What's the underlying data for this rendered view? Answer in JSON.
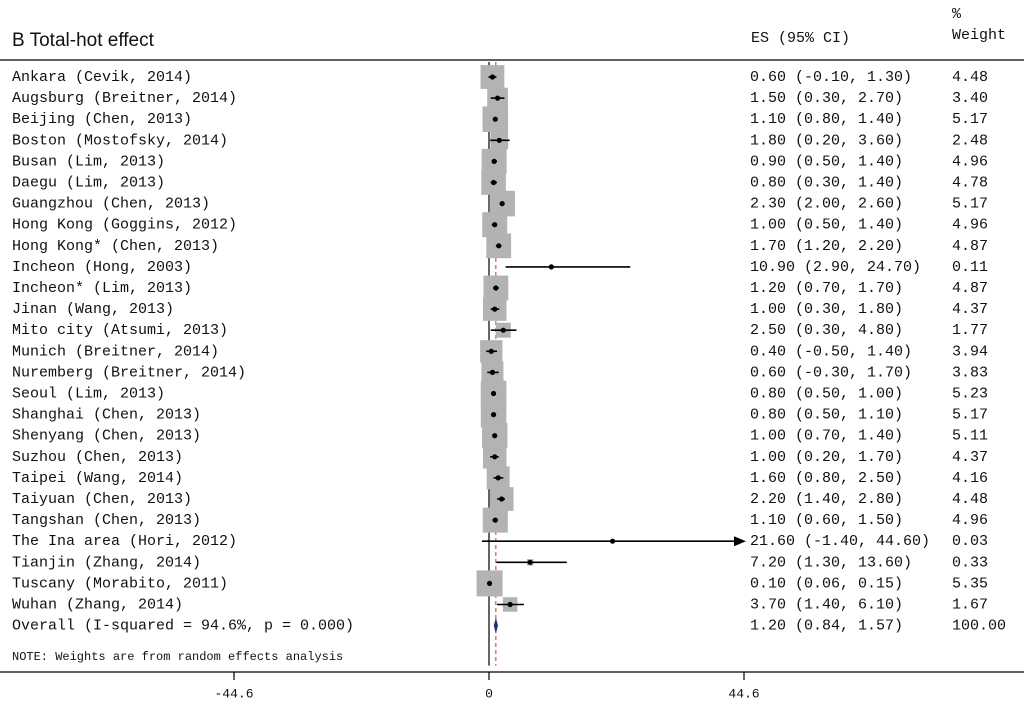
{
  "chart_data": {
    "type": "forest",
    "title": "B Total-hot effect",
    "headers": {
      "es": "ES (95% CI)",
      "weight_pct": "%",
      "weight": "Weight"
    },
    "studies": [
      {
        "label": "Ankara (Cevik, 2014)",
        "es": 0.6,
        "lo": -0.1,
        "hi": 1.3,
        "ci_text": "0.60 (-0.10, 1.30)",
        "weight": 4.48,
        "weight_text": "4.48"
      },
      {
        "label": "Augsburg  (Breitner, 2014)",
        "es": 1.5,
        "lo": 0.3,
        "hi": 2.7,
        "ci_text": "1.50 (0.30, 2.70)",
        "weight": 3.4,
        "weight_text": "3.40"
      },
      {
        "label": "Beijing (Chen, 2013)",
        "es": 1.1,
        "lo": 0.8,
        "hi": 1.4,
        "ci_text": "1.10 (0.80, 1.40)",
        "weight": 5.17,
        "weight_text": "5.17"
      },
      {
        "label": "Boston (Mostofsky, 2014)",
        "es": 1.8,
        "lo": 0.2,
        "hi": 3.6,
        "ci_text": "1.80 (0.20, 3.60)",
        "weight": 2.48,
        "weight_text": "2.48"
      },
      {
        "label": "Busan (Lim, 2013)",
        "es": 0.9,
        "lo": 0.5,
        "hi": 1.4,
        "ci_text": "0.90 (0.50, 1.40)",
        "weight": 4.96,
        "weight_text": "4.96"
      },
      {
        "label": "Daegu (Lim, 2013)",
        "es": 0.8,
        "lo": 0.3,
        "hi": 1.4,
        "ci_text": "0.80 (0.30, 1.40)",
        "weight": 4.78,
        "weight_text": "4.78"
      },
      {
        "label": "Guangzhou (Chen, 2013)",
        "es": 2.3,
        "lo": 2.0,
        "hi": 2.6,
        "ci_text": "2.30 (2.00, 2.60)",
        "weight": 5.17,
        "weight_text": "5.17"
      },
      {
        "label": "Hong Kong (Goggins, 2012)",
        "es": 1.0,
        "lo": 0.5,
        "hi": 1.4,
        "ci_text": "1.00 (0.50, 1.40)",
        "weight": 4.96,
        "weight_text": "4.96"
      },
      {
        "label": "Hong Kong* (Chen, 2013)",
        "es": 1.7,
        "lo": 1.2,
        "hi": 2.2,
        "ci_text": "1.70 (1.20, 2.20)",
        "weight": 4.87,
        "weight_text": "4.87"
      },
      {
        "label": "Incheon (Hong, 2003)",
        "es": 10.9,
        "lo": 2.9,
        "hi": 24.7,
        "ci_text": "10.90 (2.90, 24.70)",
        "weight": 0.11,
        "weight_text": "0.11"
      },
      {
        "label": "Incheon* (Lim, 2013)",
        "es": 1.2,
        "lo": 0.7,
        "hi": 1.7,
        "ci_text": "1.20 (0.70, 1.70)",
        "weight": 4.87,
        "weight_text": "4.87"
      },
      {
        "label": "Jinan (Wang, 2013)",
        "es": 1.0,
        "lo": 0.3,
        "hi": 1.8,
        "ci_text": "1.00 (0.30, 1.80)",
        "weight": 4.37,
        "weight_text": "4.37"
      },
      {
        "label": "Mito city (Atsumi, 2013)",
        "es": 2.5,
        "lo": 0.3,
        "hi": 4.8,
        "ci_text": "2.50 (0.30, 4.80)",
        "weight": 1.77,
        "weight_text": "1.77"
      },
      {
        "label": "Munich (Breitner, 2014)",
        "es": 0.4,
        "lo": -0.5,
        "hi": 1.4,
        "ci_text": "0.40 (-0.50, 1.40)",
        "weight": 3.94,
        "weight_text": "3.94"
      },
      {
        "label": "Nuremberg (Breitner, 2014)",
        "es": 0.6,
        "lo": -0.3,
        "hi": 1.7,
        "ci_text": "0.60 (-0.30, 1.70)",
        "weight": 3.83,
        "weight_text": "3.83"
      },
      {
        "label": "Seoul (Lim, 2013)",
        "es": 0.8,
        "lo": 0.5,
        "hi": 1.0,
        "ci_text": "0.80 (0.50, 1.00)",
        "weight": 5.23,
        "weight_text": "5.23"
      },
      {
        "label": "Shanghai (Chen, 2013)",
        "es": 0.8,
        "lo": 0.5,
        "hi": 1.1,
        "ci_text": "0.80 (0.50, 1.10)",
        "weight": 5.17,
        "weight_text": "5.17"
      },
      {
        "label": "Shenyang (Chen, 2013)",
        "es": 1.0,
        "lo": 0.7,
        "hi": 1.4,
        "ci_text": "1.00 (0.70, 1.40)",
        "weight": 5.11,
        "weight_text": "5.11"
      },
      {
        "label": "Suzhou (Chen, 2013)",
        "es": 1.0,
        "lo": 0.2,
        "hi": 1.7,
        "ci_text": "1.00 (0.20, 1.70)",
        "weight": 4.37,
        "weight_text": "4.37"
      },
      {
        "label": "Taipei (Wang, 2014)",
        "es": 1.6,
        "lo": 0.8,
        "hi": 2.5,
        "ci_text": "1.60 (0.80, 2.50)",
        "weight": 4.16,
        "weight_text": "4.16"
      },
      {
        "label": "Taiyuan (Chen, 2013)",
        "es": 2.2,
        "lo": 1.4,
        "hi": 2.8,
        "ci_text": "2.20 (1.40, 2.80)",
        "weight": 4.48,
        "weight_text": "4.48"
      },
      {
        "label": "Tangshan (Chen, 2013)",
        "es": 1.1,
        "lo": 0.6,
        "hi": 1.5,
        "ci_text": "1.10 (0.60, 1.50)",
        "weight": 4.96,
        "weight_text": "4.96"
      },
      {
        "label": "The Ina area (Hori, 2012)",
        "es": 21.6,
        "lo": -1.4,
        "hi": 44.6,
        "ci_text": "21.60 (-1.40, 44.60)",
        "weight": 0.03,
        "weight_text": "0.03",
        "arrow": true
      },
      {
        "label": "Tianjin (Zhang, 2014)",
        "es": 7.2,
        "lo": 1.3,
        "hi": 13.6,
        "ci_text": "7.20 (1.30, 13.60)",
        "weight": 0.33,
        "weight_text": "0.33"
      },
      {
        "label": "Tuscany (Morabito, 2011)",
        "es": 0.1,
        "lo": 0.06,
        "hi": 0.15,
        "ci_text": "0.10 (0.06, 0.15)",
        "weight": 5.35,
        "weight_text": "5.35"
      },
      {
        "label": "Wuhan (Zhang, 2014)",
        "es": 3.7,
        "lo": 1.4,
        "hi": 6.1,
        "ci_text": "3.70 (1.40, 6.10)",
        "weight": 1.67,
        "weight_text": "1.67"
      }
    ],
    "overall": {
      "label": "Overall  (I-squared = 94.6%, p = 0.000)",
      "es": 1.2,
      "lo": 0.84,
      "hi": 1.57,
      "ci_text": "1.20 (0.84, 1.57)",
      "weight_text": "100.00"
    },
    "note": "NOTE: Weights are from random effects analysis",
    "xticks": [
      -44.6,
      0,
      44.6
    ],
    "xtick_labels": [
      "-44.6",
      "0",
      "44.6"
    ],
    "xlim": [
      -44.6,
      44.6
    ],
    "colors": {
      "weight_box": "#b3b3b3",
      "line": "#000000",
      "overall_diamond": "#1f2f7a",
      "overall_line": "#c0392b"
    }
  }
}
